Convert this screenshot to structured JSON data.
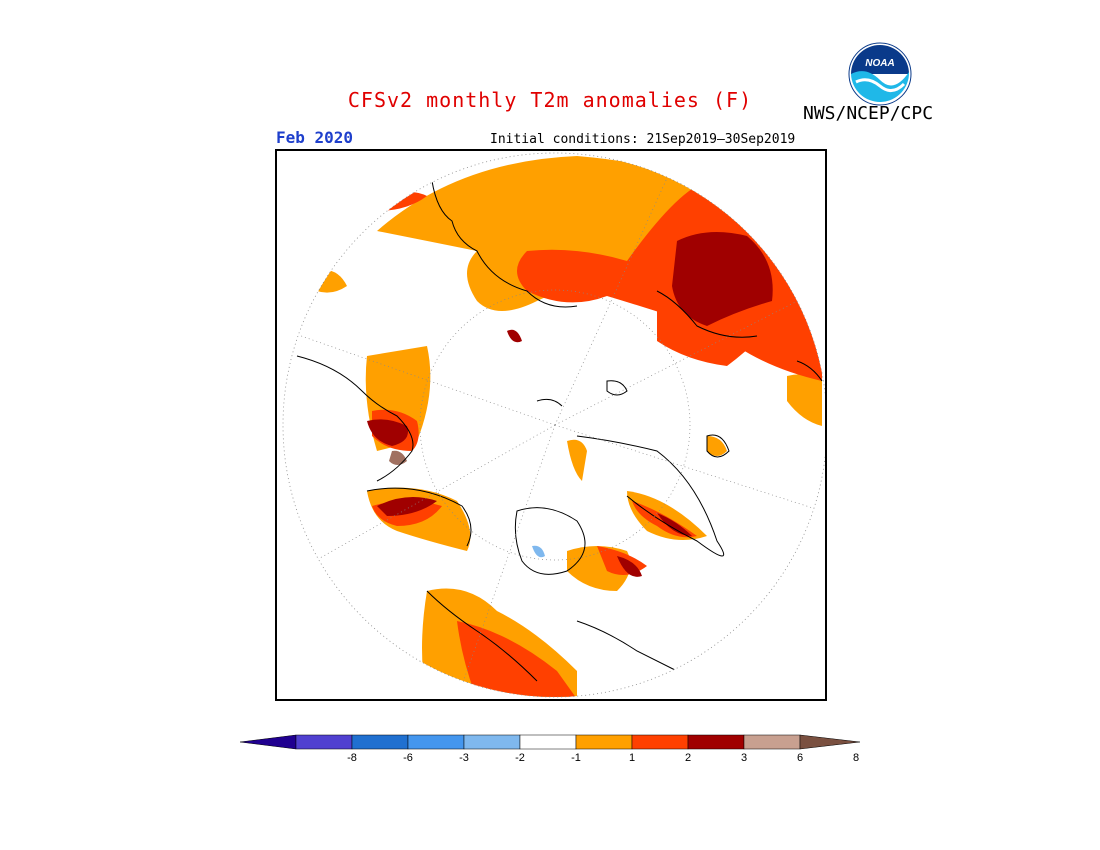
{
  "header": {
    "title": "CFSv2 monthly T2m anomalies (F)",
    "title_color": "#e00000",
    "agency": "NWS/NCEP/CPC",
    "month": "Feb 2020",
    "month_color": "#1e3fcc",
    "initial_conditions": "Initial conditions: 21Sep2019–30Sep2019"
  },
  "logo": {
    "icon": "noaa-logo-icon",
    "text": "NOAA"
  },
  "map": {
    "projection": "north-polar-stereographic",
    "graticule": "dotted"
  },
  "legend": {
    "colors": [
      "#200090",
      "#5040d0",
      "#2070d0",
      "#4496ee",
      "#7fb8ee",
      "#ffffff",
      "#ffa000",
      "#ff4000",
      "#a00000",
      "#c8a090",
      "#7a5040"
    ],
    "ticks": [
      "-8",
      "-6",
      "-3",
      "-2",
      "-1",
      "1",
      "2",
      "3",
      "6",
      "8"
    ]
  }
}
